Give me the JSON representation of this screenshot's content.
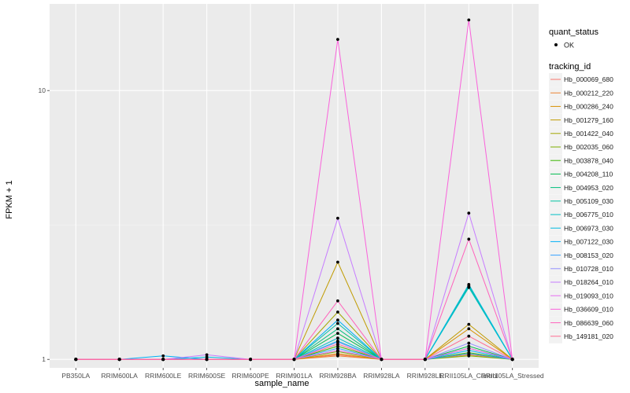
{
  "chart_data": {
    "type": "line",
    "xlabel": "sample_name",
    "ylabel": "FPKM + 1",
    "y_scale": "log10",
    "ylim": [
      0.93,
      21
    ],
    "y_ticks": [
      1,
      10
    ],
    "y_tick_labels": [
      "1",
      "10"
    ],
    "grid": true,
    "legend_position": "right",
    "categories": [
      "PB350LA",
      "RRIM600LA",
      "RRIM600LE",
      "RRIM600SE",
      "RRIM600PE",
      "RRIM901LA",
      "RRIM928BA",
      "RRIM928LA",
      "RRIM928LE",
      "RRII105LA_Control",
      "RRII105LA_Stressed"
    ],
    "legend_shape": {
      "title": "quant_status",
      "items": [
        {
          "label": "OK",
          "shape": "point"
        }
      ]
    },
    "legend_color_title": "tracking_id",
    "series": [
      {
        "name": "Hb_000069_680",
        "color": "#F8766D",
        "values": [
          1,
          1,
          1,
          1,
          1,
          1,
          1.04,
          1,
          1,
          1.05,
          1
        ]
      },
      {
        "name": "Hb_000212_220",
        "color": "#EA8331",
        "values": [
          1,
          1,
          1,
          1,
          1,
          1,
          1.03,
          1,
          1,
          1.04,
          1
        ]
      },
      {
        "name": "Hb_000286_240",
        "color": "#D89000",
        "values": [
          1,
          1,
          1,
          1,
          1,
          1,
          1.05,
          1,
          1,
          1.3,
          1
        ]
      },
      {
        "name": "Hb_001279_160",
        "color": "#C09B00",
        "values": [
          1,
          1,
          1,
          1,
          1,
          1,
          2.3,
          1,
          1,
          1.35,
          1
        ]
      },
      {
        "name": "Hb_001422_040",
        "color": "#A3A500",
        "values": [
          1,
          1,
          1,
          1,
          1,
          1,
          1.5,
          1,
          1,
          1.1,
          1
        ]
      },
      {
        "name": "Hb_002035_060",
        "color": "#7CAE00",
        "values": [
          1,
          1,
          1,
          1,
          1,
          1,
          1.07,
          1,
          1,
          1.03,
          1
        ]
      },
      {
        "name": "Hb_003878_040",
        "color": "#39B600",
        "values": [
          1,
          1,
          1,
          1,
          1,
          1,
          1.12,
          1,
          1,
          1.06,
          1
        ]
      },
      {
        "name": "Hb_004208_110",
        "color": "#00BB4E",
        "values": [
          1,
          1,
          1,
          1,
          1,
          1,
          1.25,
          1,
          1,
          1.12,
          1
        ]
      },
      {
        "name": "Hb_004953_020",
        "color": "#00BF7D",
        "values": [
          1,
          1,
          1,
          1,
          1,
          1,
          1.3,
          1,
          1,
          1.86,
          1
        ]
      },
      {
        "name": "Hb_005109_030",
        "color": "#00C1A3",
        "values": [
          1,
          1,
          1,
          1,
          1,
          1,
          1.36,
          1,
          1,
          1.88,
          1
        ]
      },
      {
        "name": "Hb_006775_010",
        "color": "#00BFC4",
        "values": [
          1,
          1,
          1,
          1,
          1,
          1,
          1.2,
          1,
          1,
          1.85,
          1
        ]
      },
      {
        "name": "Hb_006973_030",
        "color": "#00BAE0",
        "values": [
          1,
          1,
          1,
          1.02,
          1,
          1,
          1.17,
          1,
          1,
          1.9,
          1
        ]
      },
      {
        "name": "Hb_007122_030",
        "color": "#00B0F6",
        "values": [
          1,
          1,
          1.03,
          1,
          1,
          1,
          1.4,
          1,
          1,
          1.08,
          1
        ]
      },
      {
        "name": "Hb_008153_020",
        "color": "#35A2FF",
        "values": [
          1,
          1,
          1,
          1,
          1,
          1,
          1.1,
          1,
          1,
          1.05,
          1
        ]
      },
      {
        "name": "Hb_010728_010",
        "color": "#9590FF",
        "values": [
          1,
          1,
          1,
          1,
          1,
          1,
          1.16,
          1,
          1,
          1.15,
          1
        ]
      },
      {
        "name": "Hb_018264_010",
        "color": "#C77CFF",
        "values": [
          1,
          1,
          1,
          1.04,
          1,
          1,
          3.35,
          1,
          1,
          3.5,
          1
        ]
      },
      {
        "name": "Hb_019093_010",
        "color": "#E76BF3",
        "values": [
          1,
          1,
          1,
          1,
          1,
          1,
          1.08,
          1,
          1,
          1.1,
          1
        ]
      },
      {
        "name": "Hb_036609_010",
        "color": "#FA62DB",
        "values": [
          1,
          1,
          1,
          1,
          1,
          1,
          15.5,
          1,
          1,
          18.3,
          1
        ]
      },
      {
        "name": "Hb_086639_060",
        "color": "#FF62BC",
        "values": [
          1,
          1,
          1,
          1,
          1,
          1,
          1.65,
          1,
          1,
          2.8,
          1
        ]
      },
      {
        "name": "Hb_149181_020",
        "color": "#FF6C91",
        "values": [
          1,
          1,
          1,
          1,
          1,
          1,
          1.14,
          1,
          1,
          1.22,
          1
        ]
      }
    ]
  }
}
